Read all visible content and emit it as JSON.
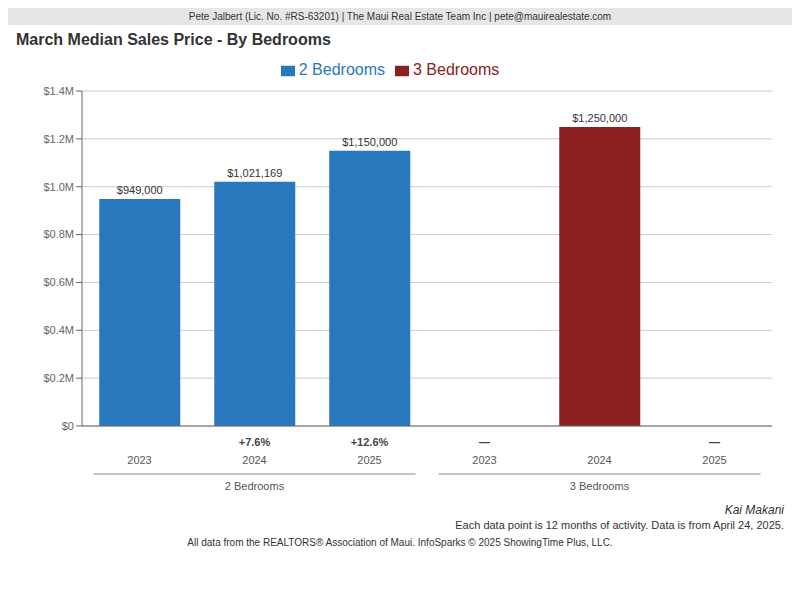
{
  "chart_data": {
    "type": "bar",
    "title": "March Median Sales Price - By Bedrooms",
    "header": "Pete Jalbert (Lic. No. #RS-63201) | The Maui Real Estate Team Inc | pete@mauirealestate.com",
    "categories": [
      "2023",
      "2024",
      "2025",
      "2023",
      "2024",
      "2025"
    ],
    "groups": [
      "2 Bedrooms",
      "2 Bedrooms",
      "2 Bedrooms",
      "3 Bedrooms",
      "3 Bedrooms",
      "3 Bedrooms"
    ],
    "change_labels": [
      null,
      "+7.6%",
      "+12.6%",
      "—",
      null,
      "—"
    ],
    "series": [
      {
        "name": "2 Bedrooms",
        "color": "#2878be",
        "values": [
          949000,
          1021169,
          1150000,
          null,
          null,
          null
        ],
        "value_labels": [
          "$949,000",
          "$1,021,169",
          "$1,150,000",
          null,
          null,
          null
        ]
      },
      {
        "name": "3 Bedrooms",
        "color": "#8b2020",
        "values": [
          null,
          null,
          null,
          null,
          1250000,
          null
        ],
        "value_labels": [
          null,
          null,
          null,
          null,
          "$1,250,000",
          null
        ]
      }
    ],
    "ylim": [
      0,
      1400000
    ],
    "yticks": [
      {
        "value": 0,
        "label": "$0"
      },
      {
        "value": 200000,
        "label": "$0.2M"
      },
      {
        "value": 400000,
        "label": "$0.4M"
      },
      {
        "value": 600000,
        "label": "$0.6M"
      },
      {
        "value": 800000,
        "label": "$0.8M"
      },
      {
        "value": 1000000,
        "label": "$1.0M"
      },
      {
        "value": 1200000,
        "label": "$1.2M"
      },
      {
        "value": 1400000,
        "label": "$1.4M"
      }
    ],
    "grid": true,
    "data_labels": true,
    "footnotes": [
      "Kai Makani",
      "Each data point is 12 months of activity. Data is from April 24, 2025.",
      "All data from the REALTORS® Association of Maui. InfoSparks © 2025 ShowingTime Plus, LLC."
    ]
  }
}
